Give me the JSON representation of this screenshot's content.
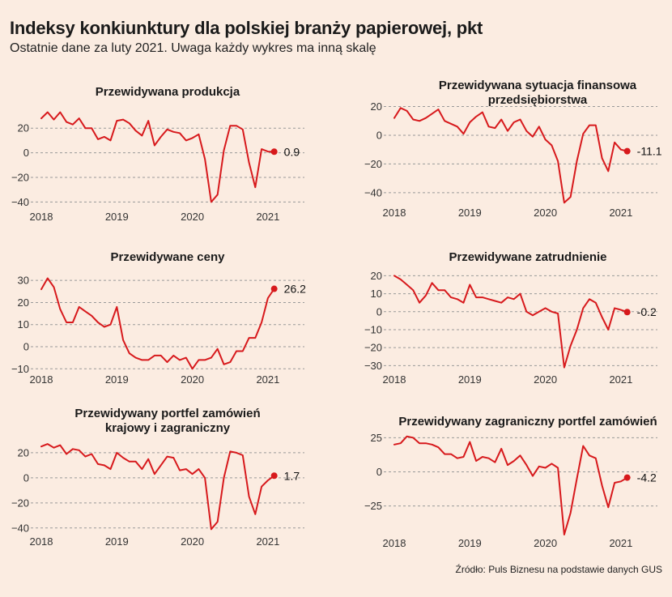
{
  "title": "Indeksy konkiunktury dla polskiej branży papierowej, pkt",
  "subtitle": "Ostatnie dane za luty 2021. Uwaga każdy wykres ma inną skalę",
  "source": "Źródło: Puls Biznesu na podstawie danych GUS",
  "colors": {
    "line": "#d7191c",
    "background": "#fbece1",
    "grid": "#999999"
  },
  "chart_data": [
    {
      "type": "line",
      "title_lines": [
        "Przewidywana produkcja"
      ],
      "x_ticks": [
        "2018",
        "2019",
        "2020",
        "2021"
      ],
      "ylim": [
        -45,
        32
      ],
      "y_ticks": [
        -40,
        -20,
        0,
        20
      ],
      "y_tick_labels": [
        "−40",
        "−20",
        "0",
        "20"
      ],
      "end_label": "0.9",
      "series": [
        {
          "x_start": "2018-01",
          "values": [
            28,
            33,
            27,
            33,
            25,
            23,
            28,
            20,
            20,
            11,
            13,
            10,
            26,
            27,
            24,
            18,
            14,
            26,
            6,
            13,
            19,
            17,
            16,
            10,
            12,
            15,
            -5,
            -40,
            -34,
            2,
            22,
            22,
            19,
            -8,
            -28,
            3,
            1,
            0.9
          ]
        }
      ]
    },
    {
      "type": "line",
      "title_lines": [
        "Przewidywana sytuacja finansowa",
        "przedsiębiorstwa"
      ],
      "x_ticks": [
        "2018",
        "2019",
        "2020",
        "2021"
      ],
      "ylim": [
        -48,
        22
      ],
      "y_ticks": [
        -40,
        -20,
        0,
        20
      ],
      "y_tick_labels": [
        "−40",
        "−20",
        "0",
        "20"
      ],
      "end_label": "-11.1",
      "series": [
        {
          "x_start": "2018-01",
          "values": [
            12,
            19,
            17,
            11,
            10,
            12,
            15,
            18,
            10,
            8,
            6,
            1,
            9,
            13,
            16,
            6,
            5,
            11,
            3,
            9,
            11,
            3,
            -1,
            6,
            -3,
            -7,
            -18,
            -47,
            -43,
            -18,
            1,
            7,
            7,
            -16,
            -25,
            -5,
            -10,
            -11.1
          ]
        }
      ]
    },
    {
      "type": "line",
      "title_lines": [
        "Przewidywane ceny"
      ],
      "x_ticks": [
        "2018",
        "2019",
        "2020",
        "2021"
      ],
      "ylim": [
        -11,
        33
      ],
      "y_ticks": [
        -10,
        0,
        10,
        20,
        30
      ],
      "y_tick_labels": [
        "−10",
        "0",
        "10",
        "20",
        "30"
      ],
      "end_label": "26.2",
      "series": [
        {
          "x_start": "2018-01",
          "values": [
            26,
            31,
            27,
            17,
            11,
            11,
            18,
            16,
            14,
            11,
            9,
            10,
            18,
            3,
            -3,
            -5,
            -6,
            -6,
            -4,
            -4,
            -7,
            -4,
            -6,
            -5,
            -10,
            -6,
            -6,
            -5,
            -1,
            -8,
            -7,
            -2,
            -2,
            4,
            4,
            11,
            22,
            26.2
          ]
        }
      ]
    },
    {
      "type": "line",
      "title_lines": [
        "Przewidywane zatrudnienie"
      ],
      "x_ticks": [
        "2018",
        "2019",
        "2020",
        "2021"
      ],
      "ylim": [
        -33,
        22
      ],
      "y_ticks": [
        -30,
        -20,
        -10,
        0,
        10,
        20
      ],
      "y_tick_labels": [
        "−30",
        "−20",
        "−10",
        "0",
        "10",
        "20"
      ],
      "end_label": "-0.2",
      "series": [
        {
          "x_start": "2018-01",
          "values": [
            20,
            18,
            15,
            12,
            5,
            9,
            16,
            12,
            12,
            8,
            7,
            5,
            15,
            8,
            8,
            7,
            6,
            5,
            8,
            7,
            10,
            0,
            -2,
            0,
            2,
            0,
            -1,
            -31,
            -19,
            -10,
            2,
            7,
            5,
            -3,
            -10,
            2,
            1,
            -0.2
          ]
        }
      ]
    },
    {
      "type": "line",
      "title_lines": [
        "Przewidywany portfel zamówień",
        "krajowy i zagraniczny"
      ],
      "x_ticks": [
        "2018",
        "2019",
        "2020",
        "2021"
      ],
      "ylim": [
        -44,
        29
      ],
      "y_ticks": [
        -40,
        -20,
        0,
        20
      ],
      "y_tick_labels": [
        "−40",
        "−20",
        "0",
        "20"
      ],
      "end_label": "1.7",
      "series": [
        {
          "x_start": "2018-01",
          "values": [
            25,
            27,
            24,
            26,
            19,
            23,
            22,
            17,
            19,
            11,
            10,
            7,
            20,
            16,
            13,
            13,
            7,
            15,
            3,
            10,
            17,
            16,
            6,
            7,
            3,
            7,
            0,
            -41,
            -35,
            0,
            21,
            20,
            18,
            -15,
            -29,
            -7,
            -2,
            1.7
          ]
        }
      ]
    },
    {
      "type": "line",
      "title_lines": [
        "Przewidywany zagraniczny portfel zamówień"
      ],
      "x_ticks": [
        "2018",
        "2019",
        "2020",
        "2021"
      ],
      "ylim": [
        -46,
        30
      ],
      "y_ticks": [
        -25,
        0,
        25
      ],
      "y_tick_labels": [
        "−25",
        "0",
        "25"
      ],
      "end_label": "-4.2",
      "series": [
        {
          "x_start": "2018-01",
          "values": [
            20,
            21,
            26,
            25,
            21,
            21,
            20,
            18,
            13,
            13,
            10,
            11,
            22,
            8,
            11,
            10,
            7,
            17,
            5,
            8,
            12,
            5,
            -3,
            4,
            3,
            6,
            3,
            -46,
            -30,
            -5,
            19,
            12,
            10,
            -10,
            -26,
            -8,
            -7,
            -4.2
          ]
        }
      ]
    }
  ]
}
